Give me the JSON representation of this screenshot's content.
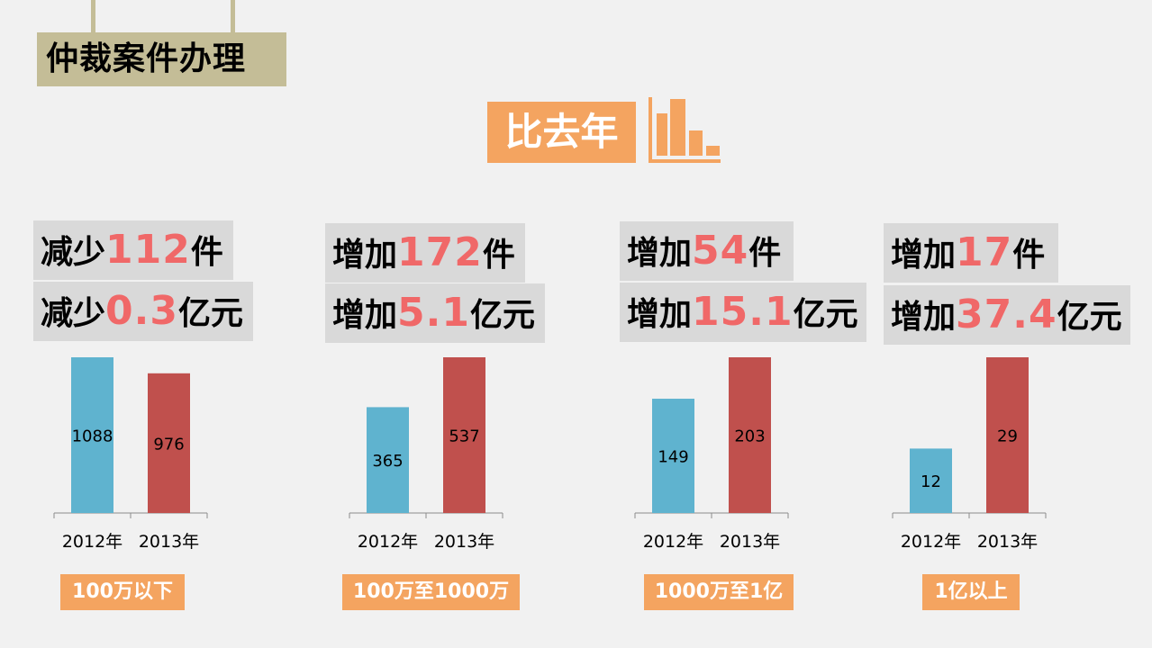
{
  "page": {
    "title": "仲裁案件办理",
    "compare_label": "比去年"
  },
  "panels": [
    {
      "line1": {
        "prefix": "减少",
        "number": "112",
        "suffix": "件"
      },
      "line2": {
        "prefix": "减少",
        "number": "0.3",
        "suffix": "亿元"
      },
      "category": "100万以下"
    },
    {
      "line1": {
        "prefix": "增加",
        "number": "172",
        "suffix": "件"
      },
      "line2": {
        "prefix": "增加",
        "number": "5.1",
        "suffix": "亿元"
      },
      "category": "100万至1000万"
    },
    {
      "line1": {
        "prefix": "增加",
        "number": "54",
        "suffix": "件"
      },
      "line2": {
        "prefix": "增加",
        "number": "15.1",
        "suffix": "亿元"
      },
      "category": "1000万至1亿"
    },
    {
      "line1": {
        "prefix": "增加",
        "number": "17",
        "suffix": "件"
      },
      "line2": {
        "prefix": "增加",
        "number": "37.4",
        "suffix": "亿元"
      },
      "category": "1亿以上"
    }
  ],
  "colors": {
    "bar_2012": "#5fb3cf",
    "bar_2013": "#c0504d",
    "accent_orange": "#f4a460",
    "highlight_number": "#f06868",
    "title_bg": "#c4bd97",
    "stat_bg": "#d9d9d9"
  },
  "compare_icon": "bar-chart-icon",
  "chart_data": [
    {
      "type": "bar",
      "categories": [
        "2012年",
        "2013年"
      ],
      "values": [
        1088,
        976
      ]
    },
    {
      "type": "bar",
      "categories": [
        "2012年",
        "2013年"
      ],
      "values": [
        365,
        537
      ]
    },
    {
      "type": "bar",
      "categories": [
        "2012年",
        "2013年"
      ],
      "values": [
        149,
        203
      ]
    },
    {
      "type": "bar",
      "categories": [
        "2012年",
        "2013年"
      ],
      "values": [
        12,
        29
      ]
    }
  ]
}
